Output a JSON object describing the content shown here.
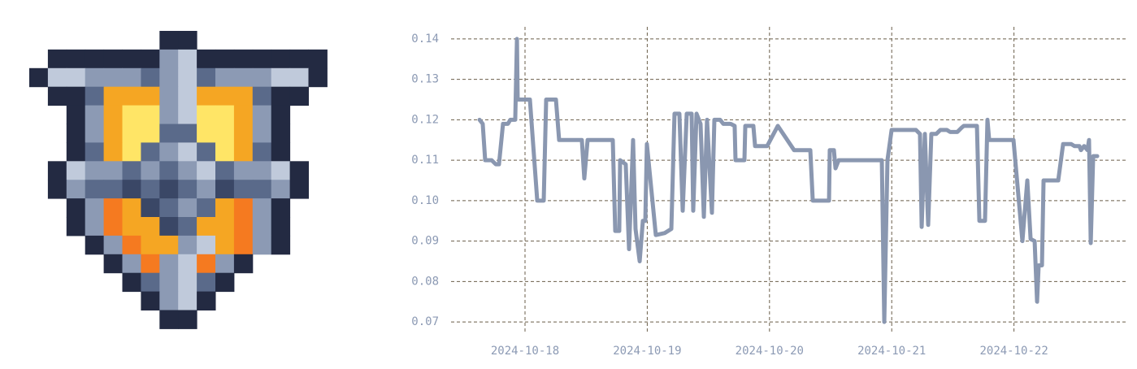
{
  "chart_data": {
    "type": "line",
    "color": "#8a97b0",
    "grid": true,
    "xlim": [
      17.395,
      22.93
    ],
    "ylim": [
      0.067,
      0.143
    ],
    "xticks": [
      {
        "value": 18,
        "label": "2024-10-18"
      },
      {
        "value": 19,
        "label": "2024-10-19"
      },
      {
        "value": 20,
        "label": "2024-10-20"
      },
      {
        "value": 21,
        "label": "2024-10-21"
      },
      {
        "value": 22,
        "label": "2024-10-22"
      }
    ],
    "yticks": [
      0.07,
      0.08,
      0.09,
      {
        "value": 0.1,
        "label": "0.10"
      },
      0.11,
      0.12,
      0.13,
      0.14
    ],
    "x": [
      17.628,
      17.654,
      17.674,
      17.727,
      17.761,
      17.787,
      17.82,
      17.86,
      17.88,
      17.92,
      17.934,
      17.94,
      18.04,
      18.1,
      18.153,
      18.173,
      18.253,
      18.279,
      18.465,
      18.485,
      18.512,
      18.718,
      18.738,
      18.771,
      18.778,
      18.824,
      18.851,
      18.884,
      18.904,
      18.938,
      18.964,
      18.984,
      18.997,
      19.07,
      19.144,
      19.197,
      19.223,
      19.263,
      19.29,
      19.323,
      19.363,
      19.376,
      19.403,
      19.436,
      19.463,
      19.489,
      19.529,
      19.549,
      19.596,
      19.622,
      19.682,
      19.715,
      19.722,
      19.795,
      19.802,
      19.868,
      19.882,
      19.981,
      20.068,
      20.201,
      20.334,
      20.354,
      20.487,
      20.493,
      20.527,
      20.54,
      20.566,
      20.919,
      20.939,
      20.965,
      20.999,
      21.198,
      21.231,
      21.245,
      21.271,
      21.298,
      21.324,
      21.364,
      21.398,
      21.451,
      21.477,
      21.537,
      21.57,
      21.59,
      21.697,
      21.717,
      21.763,
      21.783,
      21.797,
      21.996,
      22.069,
      22.109,
      22.136,
      22.169,
      22.189,
      22.202,
      22.229,
      22.242,
      22.362,
      22.402,
      22.468,
      22.495,
      22.535,
      22.548,
      22.574,
      22.601,
      22.614,
      22.628,
      22.648,
      22.681
    ],
    "values": [
      0.12,
      0.119,
      0.11,
      0.11,
      0.109,
      0.109,
      0.119,
      0.119,
      0.12,
      0.12,
      0.14,
      0.125,
      0.125,
      0.1,
      0.1,
      0.125,
      0.125,
      0.115,
      0.115,
      0.1055,
      0.115,
      0.115,
      0.0925,
      0.0925,
      0.11,
      0.109,
      0.088,
      0.115,
      0.093,
      0.085,
      0.095,
      0.095,
      0.114,
      0.0915,
      0.092,
      0.093,
      0.1215,
      0.1215,
      0.0975,
      0.1215,
      0.1215,
      0.0975,
      0.1215,
      0.119,
      0.096,
      0.12,
      0.097,
      0.12,
      0.12,
      0.119,
      0.119,
      0.1185,
      0.11,
      0.11,
      0.1185,
      0.1185,
      0.1135,
      0.1135,
      0.1185,
      0.1125,
      0.1125,
      0.1,
      0.1,
      0.1125,
      0.1125,
      0.108,
      0.11,
      0.11,
      0.07,
      0.11,
      0.1175,
      0.1175,
      0.1165,
      0.0935,
      0.1165,
      0.094,
      0.1165,
      0.1165,
      0.1175,
      0.1175,
      0.117,
      0.117,
      0.118,
      0.1185,
      0.1185,
      0.095,
      0.095,
      0.12,
      0.115,
      0.115,
      0.09,
      0.105,
      0.0905,
      0.09,
      0.075,
      0.084,
      0.084,
      0.105,
      0.105,
      0.114,
      0.114,
      0.1135,
      0.1135,
      0.1125,
      0.1135,
      0.1125,
      0.115,
      0.0895,
      0.111,
      0.111
    ]
  }
}
